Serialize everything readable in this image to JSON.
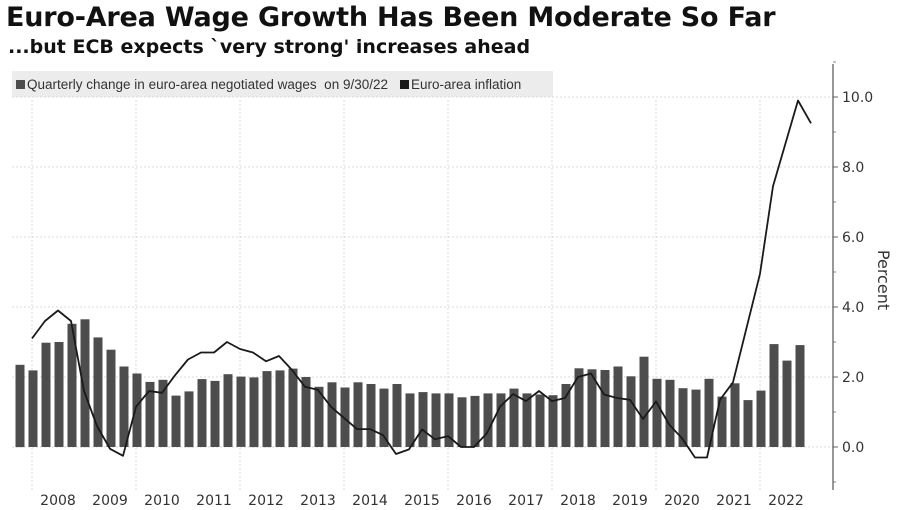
{
  "header": {
    "title": "Euro-Area Wage Growth Has Been Moderate So Far",
    "subtitle": "...but ECB expects `very strong' increases ahead"
  },
  "legend": {
    "wages_label": "Quarterly change in euro-area negotiated wages  on 9/30/22",
    "inflation_label": "Euro-area inflation"
  },
  "colors": {
    "bars": "#4d4d4d",
    "line": "#1a1a1a",
    "legend_bg": "#ececec",
    "grid": "#d8d8d8"
  },
  "chart_data": {
    "type": "bar+line",
    "title": "Euro-Area Wage Growth Has Been Moderate So Far",
    "subtitle": "...but ECB expects `very strong' increases ahead",
    "xlabel": "",
    "ylabel": "Percent",
    "ylim": [
      -1,
      11
    ],
    "xlim": [
      2007.55,
      2023.15
    ],
    "x_ticks": [
      "2008",
      "2009",
      "2010",
      "2011",
      "2012",
      "2013",
      "2014",
      "2015",
      "2016",
      "2017",
      "2018",
      "2019",
      "2020",
      "2021",
      "2022"
    ],
    "y_ticks": [
      "0.0",
      "2.0",
      "4.0",
      "6.0",
      "8.0",
      "10.0"
    ],
    "y_tick_values": [
      0,
      2,
      4,
      6,
      8,
      10
    ],
    "grid": true,
    "legend_position": "top-left",
    "series": [
      {
        "name": "Quarterly change in euro-area negotiated wages  on 9/30/22",
        "type": "bar",
        "x_start": 2007.77,
        "x_step": 0.25,
        "values": [
          2.35,
          2.19,
          2.98,
          3.0,
          3.52,
          3.65,
          3.13,
          2.78,
          2.3,
          2.1,
          1.86,
          1.92,
          1.47,
          1.59,
          1.94,
          1.89,
          2.08,
          2.01,
          1.99,
          2.17,
          2.19,
          2.24,
          2.0,
          1.72,
          1.85,
          1.7,
          1.85,
          1.8,
          1.67,
          1.8,
          1.53,
          1.57,
          1.53,
          1.53,
          1.42,
          1.46,
          1.53,
          1.53,
          1.67,
          1.53,
          1.5,
          1.48,
          1.8,
          2.25,
          2.22,
          2.2,
          2.3,
          2.02,
          2.58,
          1.95,
          1.92,
          1.68,
          1.64,
          1.95,
          1.44,
          1.82,
          1.34,
          1.61,
          2.94,
          2.47,
          2.91
        ]
      },
      {
        "name": "Euro-area inflation",
        "type": "line",
        "x": [
          2008.0,
          2008.25,
          2008.5,
          2008.75,
          2009.0,
          2009.25,
          2009.5,
          2009.75,
          2010.0,
          2010.25,
          2010.5,
          2010.75,
          2011.0,
          2011.25,
          2011.5,
          2011.75,
          2012.0,
          2012.25,
          2012.5,
          2012.75,
          2013.0,
          2013.25,
          2013.5,
          2013.75,
          2014.0,
          2014.25,
          2014.5,
          2014.75,
          2015.0,
          2015.25,
          2015.5,
          2015.75,
          2016.0,
          2016.25,
          2016.5,
          2016.75,
          2017.0,
          2017.25,
          2017.5,
          2017.75,
          2018.0,
          2018.25,
          2018.5,
          2018.75,
          2019.0,
          2019.25,
          2019.5,
          2019.75,
          2020.0,
          2020.25,
          2020.5,
          2020.75,
          2020.98,
          2021.23,
          2021.48,
          2022.0,
          2022.25,
          2022.73,
          2022.98
        ],
        "values": [
          3.1,
          3.6,
          3.9,
          3.6,
          1.6,
          0.6,
          -0.05,
          -0.25,
          1.15,
          1.6,
          1.55,
          2.05,
          2.5,
          2.7,
          2.7,
          3.0,
          2.8,
          2.7,
          2.45,
          2.6,
          2.2,
          1.72,
          1.63,
          1.15,
          0.83,
          0.51,
          0.51,
          0.34,
          -0.2,
          -0.07,
          0.5,
          0.22,
          0.31,
          0.0,
          0.0,
          0.4,
          1.15,
          1.51,
          1.31,
          1.6,
          1.31,
          1.4,
          2.0,
          2.1,
          1.5,
          1.4,
          1.35,
          0.8,
          1.3,
          0.65,
          0.25,
          -0.3,
          -0.3,
          1.35,
          1.85,
          4.95,
          7.45,
          9.9,
          9.25
        ]
      }
    ]
  }
}
